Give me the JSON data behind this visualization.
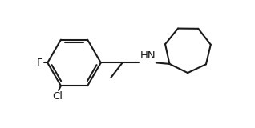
{
  "background_color": "#ffffff",
  "line_color": "#1a1a1a",
  "hn_color": "#1a1a1a",
  "f_color": "#1a1a1a",
  "cl_color": "#1a1a1a",
  "line_width": 1.5,
  "font_size": 9.5,
  "figsize": [
    3.18,
    1.6
  ],
  "dpi": 100,
  "xlim": [
    0,
    10
  ],
  "ylim": [
    0,
    5
  ]
}
